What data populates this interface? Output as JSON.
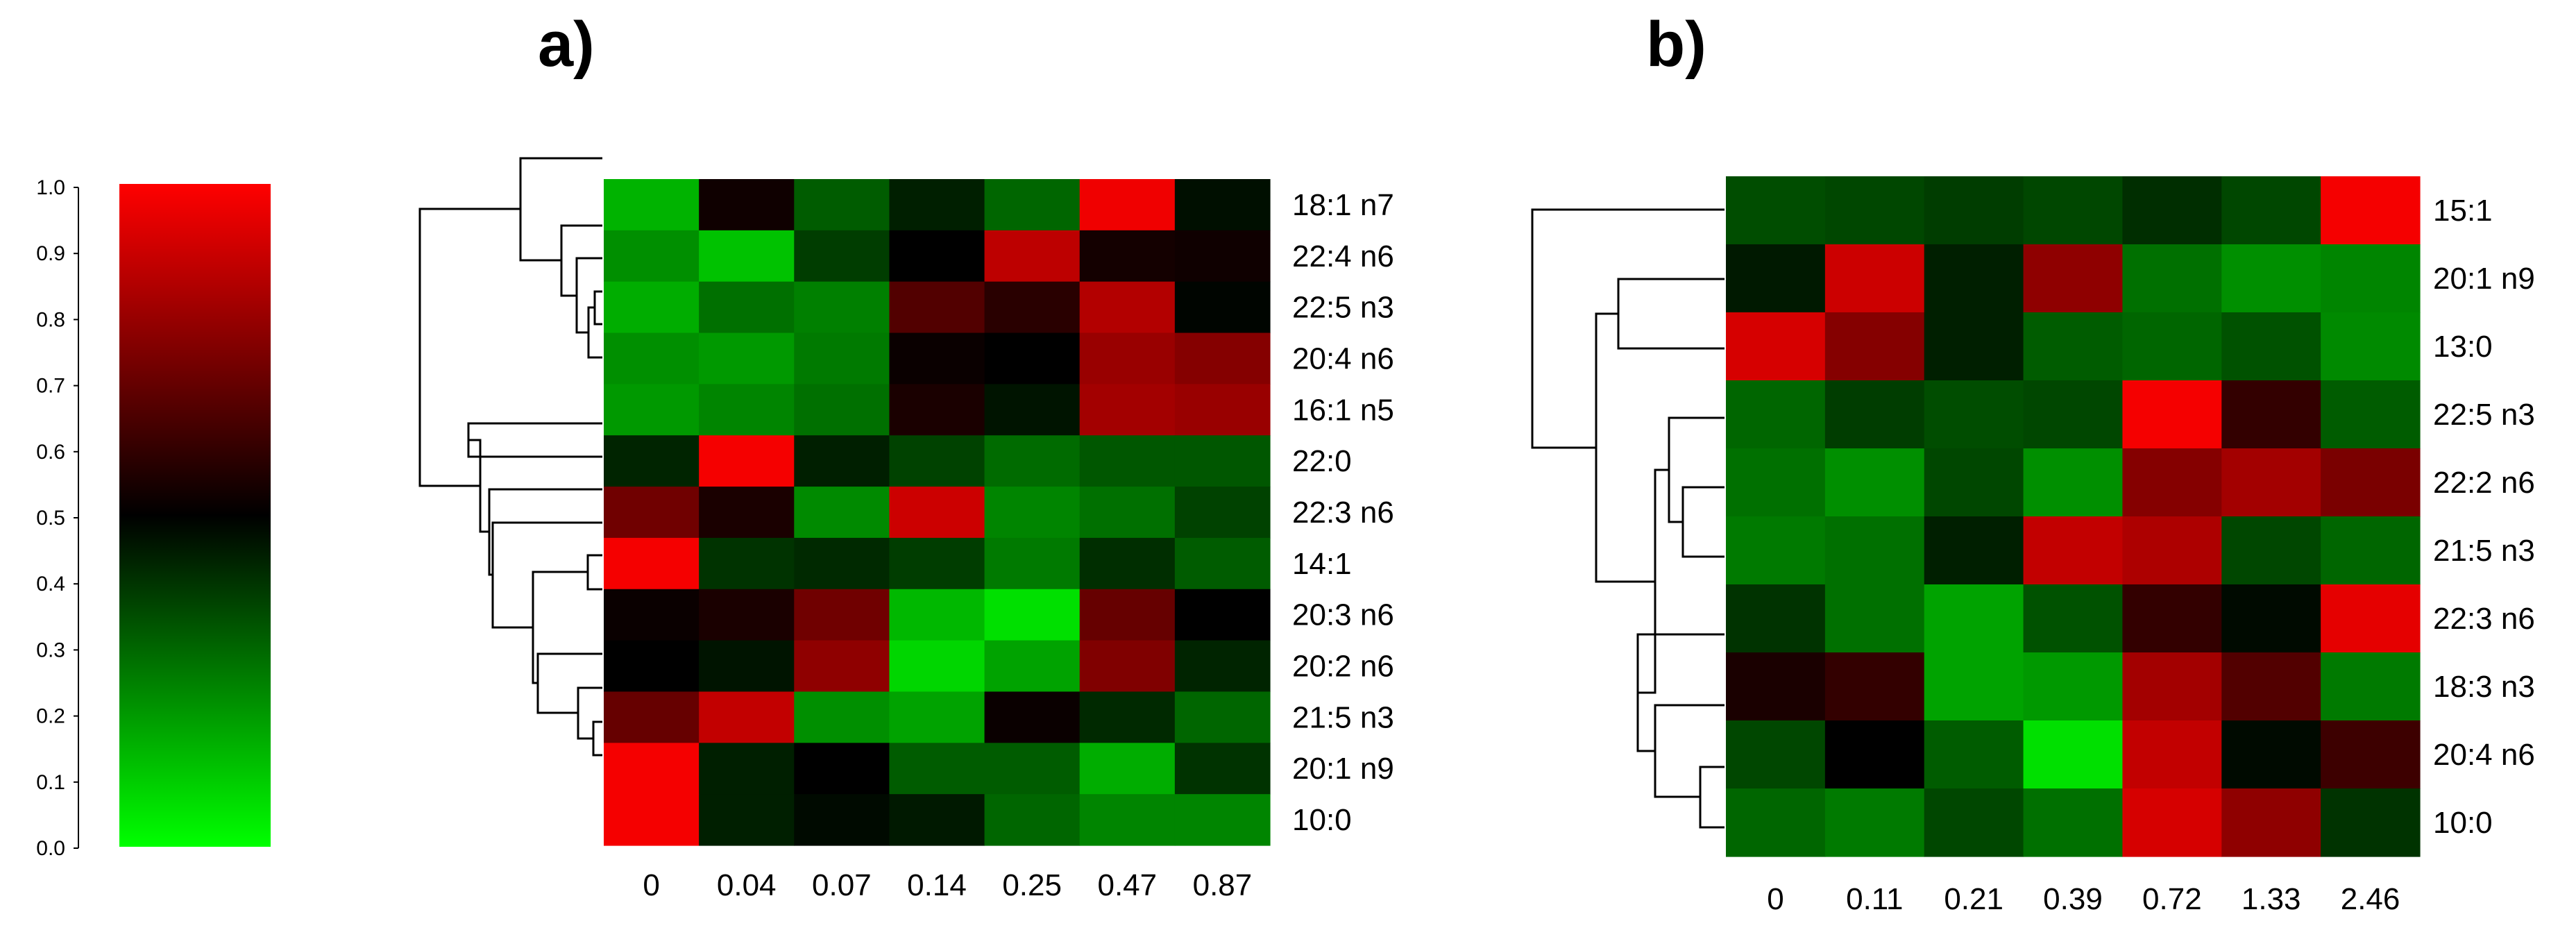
{
  "chart_data": [
    {
      "type": "heatmap",
      "panel_label": "a)",
      "columns": [
        "0",
        "0.04",
        "0.07",
        "0.14",
        "0.25",
        "0.47",
        "0.87"
      ],
      "rows": [
        "18:1 n7",
        "22:4 n6",
        "22:5 n3",
        "20:4 n6",
        "16:1 n5",
        "22:0",
        "22:3 n6",
        "14:1",
        "20:3 n6",
        "20:2 n6",
        "21:5 n3",
        "20:1 n9",
        "10:0"
      ],
      "values": [
        [
          0.15,
          0.53,
          0.32,
          0.44,
          0.3,
          0.97,
          0.47
        ],
        [
          0.22,
          0.12,
          0.38,
          0.5,
          0.87,
          0.54,
          0.53
        ],
        [
          0.16,
          0.28,
          0.25,
          0.66,
          0.58,
          0.85,
          0.49
        ],
        [
          0.22,
          0.2,
          0.26,
          0.52,
          0.5,
          0.8,
          0.76
        ],
        [
          0.2,
          0.24,
          0.28,
          0.55,
          0.46,
          0.82,
          0.8
        ],
        [
          0.43,
          0.98,
          0.44,
          0.37,
          0.29,
          0.33,
          0.33
        ],
        [
          0.72,
          0.55,
          0.23,
          0.9,
          0.24,
          0.28,
          0.37
        ],
        [
          0.98,
          0.4,
          0.42,
          0.38,
          0.26,
          0.41,
          0.32
        ],
        [
          0.52,
          0.55,
          0.72,
          0.14,
          0.06,
          0.7,
          0.5
        ],
        [
          0.5,
          0.46,
          0.78,
          0.08,
          0.18,
          0.75,
          0.43
        ],
        [
          0.7,
          0.88,
          0.22,
          0.18,
          0.52,
          0.42,
          0.3
        ],
        [
          0.98,
          0.44,
          0.5,
          0.32,
          0.32,
          0.16,
          0.4
        ],
        [
          0.98,
          0.44,
          0.48,
          0.45,
          0.3,
          0.24,
          0.24
        ]
      ]
    },
    {
      "type": "heatmap",
      "panel_label": "b)",
      "columns": [
        "0",
        "0.11",
        "0.21",
        "0.39",
        "0.72",
        "1.33",
        "2.46"
      ],
      "rows": [
        "15:1",
        "20:1 n9",
        "13:0",
        "22:5 n3",
        "22:2 n6",
        "21:5 n3",
        "22:3 n6",
        "18:3 n3",
        "20:4 n6",
        "10:0"
      ],
      "values": [
        [
          0.35,
          0.36,
          0.38,
          0.36,
          0.41,
          0.36,
          0.98
        ],
        [
          0.45,
          0.9,
          0.44,
          0.78,
          0.28,
          0.22,
          0.24
        ],
        [
          0.92,
          0.76,
          0.44,
          0.32,
          0.3,
          0.34,
          0.23
        ],
        [
          0.3,
          0.38,
          0.35,
          0.36,
          0.98,
          0.6,
          0.32
        ],
        [
          0.28,
          0.22,
          0.36,
          0.22,
          0.76,
          0.82,
          0.74
        ],
        [
          0.26,
          0.28,
          0.44,
          0.88,
          0.84,
          0.36,
          0.3
        ],
        [
          0.4,
          0.28,
          0.18,
          0.34,
          0.6,
          0.48,
          0.95
        ],
        [
          0.55,
          0.6,
          0.18,
          0.2,
          0.82,
          0.66,
          0.26
        ],
        [
          0.36,
          0.5,
          0.32,
          0.06,
          0.88,
          0.48,
          0.62
        ],
        [
          0.3,
          0.26,
          0.36,
          0.28,
          0.92,
          0.78,
          0.4
        ]
      ]
    }
  ],
  "color_scale": {
    "ticks": [
      "0.0",
      "0.1",
      "0.2",
      "0.3",
      "0.4",
      "0.5",
      "0.6",
      "0.7",
      "0.8",
      "0.9",
      "1.0"
    ],
    "low_color": "#00ff00",
    "mid_color": "#000000",
    "high_color": "#ff0000"
  }
}
